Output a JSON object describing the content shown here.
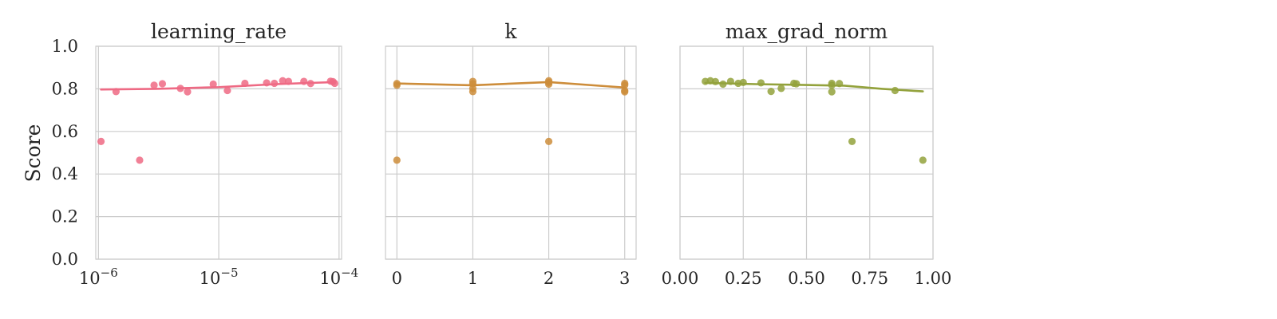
{
  "chart_data": [
    {
      "type": "scatter",
      "title": "learning_rate",
      "xscale": "log",
      "xlim": [
        9.5e-07,
        0.000105
      ],
      "ylim": [
        0,
        1
      ],
      "xticks": [
        1e-06,
        1e-05,
        0.0001
      ],
      "xtick_labels": [
        {
          "base": "10",
          "exp": "−6"
        },
        {
          "base": "10",
          "exp": "−5"
        },
        {
          "base": "10",
          "exp": "−4"
        }
      ],
      "color": "#ee6a84",
      "points": [
        {
          "x": 1.05e-06,
          "y": 0.553
        },
        {
          "x": 1.4e-06,
          "y": 0.787
        },
        {
          "x": 2.2e-06,
          "y": 0.465
        },
        {
          "x": 2.9e-06,
          "y": 0.817
        },
        {
          "x": 3.4e-06,
          "y": 0.824
        },
        {
          "x": 4.8e-06,
          "y": 0.802
        },
        {
          "x": 5.5e-06,
          "y": 0.786
        },
        {
          "x": 9e-06,
          "y": 0.822
        },
        {
          "x": 1.18e-05,
          "y": 0.792
        },
        {
          "x": 1.65e-05,
          "y": 0.826
        },
        {
          "x": 2.5e-05,
          "y": 0.828
        },
        {
          "x": 2.9e-05,
          "y": 0.826
        },
        {
          "x": 3.4e-05,
          "y": 0.838
        },
        {
          "x": 3.8e-05,
          "y": 0.835
        },
        {
          "x": 5.1e-05,
          "y": 0.835
        },
        {
          "x": 5.8e-05,
          "y": 0.825
        },
        {
          "x": 8.5e-05,
          "y": 0.836
        },
        {
          "x": 8.9e-05,
          "y": 0.834
        },
        {
          "x": 9.2e-05,
          "y": 0.826
        }
      ],
      "trend": [
        {
          "x": 1.05e-06,
          "y": 0.797
        },
        {
          "x": 3e-06,
          "y": 0.8
        },
        {
          "x": 1e-05,
          "y": 0.808
        },
        {
          "x": 3e-05,
          "y": 0.822
        },
        {
          "x": 9.2e-05,
          "y": 0.832
        }
      ]
    },
    {
      "type": "scatter",
      "title": "k",
      "xscale": "linear",
      "xlim": [
        -0.15,
        3.15
      ],
      "ylim": [
        0,
        1
      ],
      "xticks": [
        0,
        1,
        2,
        3
      ],
      "xtick_labels": [
        "0",
        "1",
        "2",
        "3"
      ],
      "color": "#cd8d3b",
      "points": [
        {
          "x": 0,
          "y": 0.825
        },
        {
          "x": 0,
          "y": 0.817
        },
        {
          "x": 0,
          "y": 0.465
        },
        {
          "x": 1,
          "y": 0.835
        },
        {
          "x": 1,
          "y": 0.824
        },
        {
          "x": 1,
          "y": 0.802
        },
        {
          "x": 1,
          "y": 0.787
        },
        {
          "x": 2,
          "y": 0.838
        },
        {
          "x": 2,
          "y": 0.83
        },
        {
          "x": 2,
          "y": 0.822
        },
        {
          "x": 2,
          "y": 0.553
        },
        {
          "x": 3,
          "y": 0.826
        },
        {
          "x": 3,
          "y": 0.818
        },
        {
          "x": 3,
          "y": 0.792
        },
        {
          "x": 3,
          "y": 0.786
        }
      ],
      "trend": [
        {
          "x": 0,
          "y": 0.825
        },
        {
          "x": 1,
          "y": 0.817
        },
        {
          "x": 2,
          "y": 0.832
        },
        {
          "x": 3,
          "y": 0.806
        }
      ]
    },
    {
      "type": "scatter",
      "title": "max_grad_norm",
      "xscale": "linear",
      "xlim": [
        0,
        1
      ],
      "ylim": [
        0,
        1
      ],
      "xticks": [
        0,
        0.25,
        0.5,
        0.75,
        1
      ],
      "xtick_labels": [
        "0.00",
        "0.25",
        "0.50",
        "0.75",
        "1.00"
      ],
      "color": "#93a23c",
      "points": [
        {
          "x": 0.1,
          "y": 0.835
        },
        {
          "x": 0.12,
          "y": 0.838
        },
        {
          "x": 0.14,
          "y": 0.834
        },
        {
          "x": 0.17,
          "y": 0.822
        },
        {
          "x": 0.2,
          "y": 0.835
        },
        {
          "x": 0.23,
          "y": 0.826
        },
        {
          "x": 0.25,
          "y": 0.83
        },
        {
          "x": 0.32,
          "y": 0.828
        },
        {
          "x": 0.36,
          "y": 0.788
        },
        {
          "x": 0.4,
          "y": 0.802
        },
        {
          "x": 0.45,
          "y": 0.826
        },
        {
          "x": 0.46,
          "y": 0.824
        },
        {
          "x": 0.6,
          "y": 0.826
        },
        {
          "x": 0.6,
          "y": 0.786
        },
        {
          "x": 0.6,
          "y": 0.817
        },
        {
          "x": 0.63,
          "y": 0.825
        },
        {
          "x": 0.68,
          "y": 0.553
        },
        {
          "x": 0.85,
          "y": 0.792
        },
        {
          "x": 0.96,
          "y": 0.465
        }
      ],
      "trend": [
        {
          "x": 0.1,
          "y": 0.828
        },
        {
          "x": 0.3,
          "y": 0.822
        },
        {
          "x": 0.5,
          "y": 0.818
        },
        {
          "x": 0.65,
          "y": 0.815
        },
        {
          "x": 0.8,
          "y": 0.8
        },
        {
          "x": 0.96,
          "y": 0.788
        }
      ]
    }
  ],
  "shared": {
    "ylabel": "Score",
    "yticks": [
      0,
      0.2,
      0.4,
      0.6,
      0.8,
      1.0
    ],
    "ytick_labels": [
      "0.0",
      "0.2",
      "0.4",
      "0.6",
      "0.8",
      "1.0"
    ]
  }
}
